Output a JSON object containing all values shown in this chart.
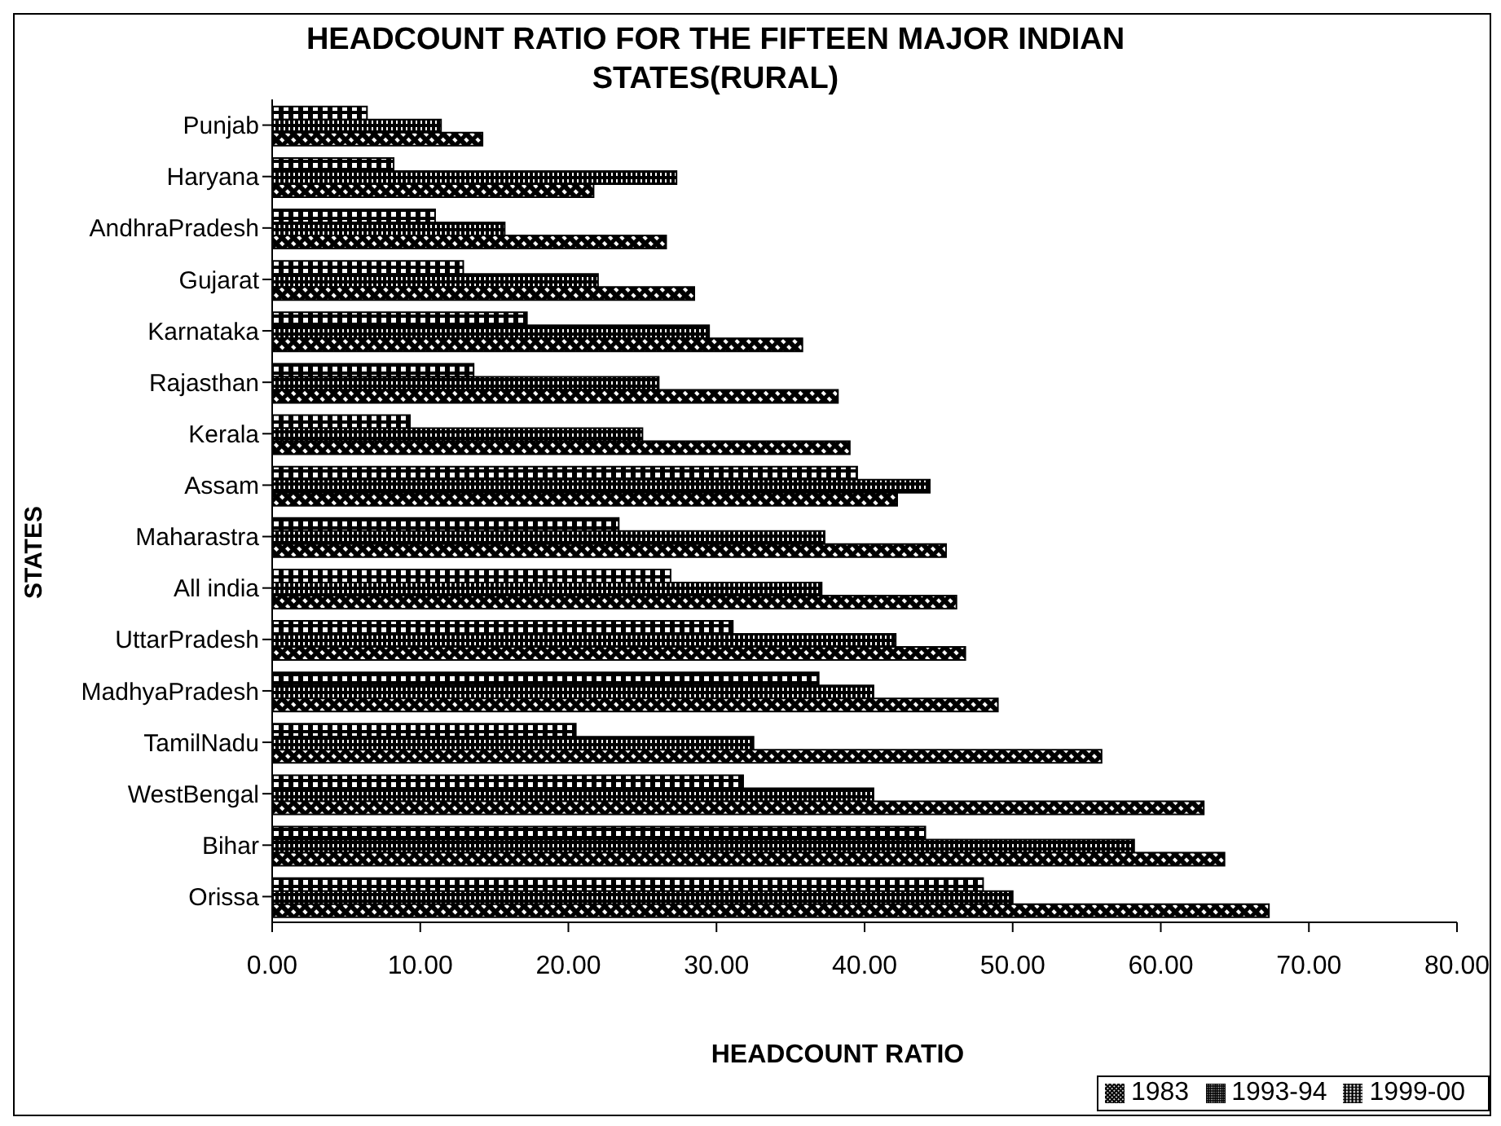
{
  "chart_data": {
    "type": "bar",
    "orientation": "horizontal",
    "title": "HEADCOUNT RATIO FOR THE FIFTEEN MAJOR INDIAN STATES(RURAL)",
    "xlabel": "HEADCOUNT RATIO",
    "ylabel": "STATES",
    "categories": [
      "Punjab",
      "Haryana",
      "AndhraPradesh",
      "Gujarat",
      "Karnataka",
      "Rajasthan",
      "Kerala",
      "Assam",
      "Maharastra",
      "All india",
      "UttarPradesh",
      "MadhyaPradesh",
      "TamilNadu",
      "WestBengal",
      "Bihar",
      "Orissa"
    ],
    "series": [
      {
        "name": "1983",
        "color": "#000000",
        "values": [
          14.2,
          21.7,
          26.6,
          28.5,
          35.8,
          38.2,
          39.0,
          42.2,
          45.5,
          46.2,
          46.8,
          49.0,
          56.0,
          62.9,
          64.3,
          67.3
        ]
      },
      {
        "name": "1993-94",
        "color": "#000000",
        "values": [
          11.4,
          27.3,
          15.7,
          22.0,
          29.5,
          26.1,
          25.0,
          44.4,
          37.3,
          37.1,
          42.1,
          40.6,
          32.5,
          40.6,
          58.2,
          50.0
        ]
      },
      {
        "name": "1999-00",
        "color": "#000000",
        "values": [
          6.4,
          8.2,
          11.0,
          12.9,
          17.2,
          13.6,
          9.3,
          39.5,
          23.4,
          26.9,
          31.1,
          36.9,
          20.5,
          31.8,
          44.1,
          48.0
        ]
      }
    ],
    "xlim": [
      0,
      80
    ],
    "xticks": [
      {
        "value": 0,
        "label": "0.00"
      },
      {
        "value": 10,
        "label": "10.00"
      },
      {
        "value": 20,
        "label": "20.00"
      },
      {
        "value": 30,
        "label": "30.00"
      },
      {
        "value": 40,
        "label": "40.00"
      },
      {
        "value": 50,
        "label": "50.00"
      },
      {
        "value": 60,
        "label": "60.00"
      },
      {
        "value": 70,
        "label": "70.00"
      },
      {
        "value": 80,
        "label": "80.00"
      }
    ],
    "grid": false,
    "legend": "bottom right"
  }
}
